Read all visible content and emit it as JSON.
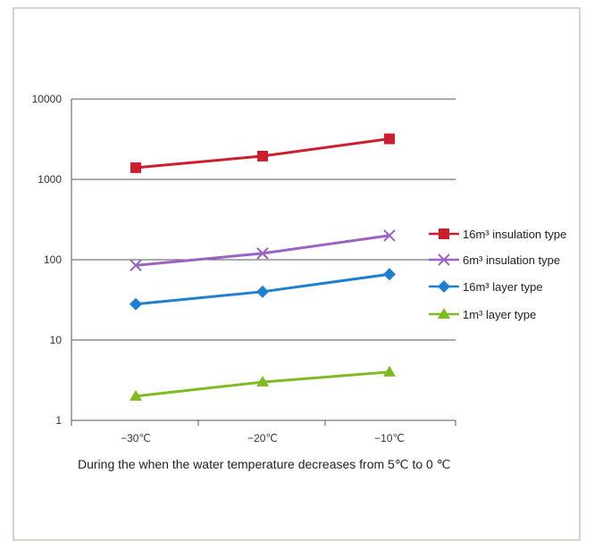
{
  "chart_data": {
    "type": "line",
    "y_scale": "log",
    "ylim": [
      1,
      10000
    ],
    "y_ticks": [
      "10000",
      "1000",
      "100",
      "10",
      "1"
    ],
    "categories": [
      "−30℃",
      "−20℃",
      "−10℃"
    ],
    "xlabel": "During the when the water temperature decreases from 5℃  to 0 ℃",
    "grid": true,
    "legend_position": "right",
    "series": [
      {
        "name": "16m³ insulation type",
        "values": [
          1400,
          1950,
          3200
        ],
        "color": "#cc1e2c",
        "marker": "square"
      },
      {
        "name": "6m³ insulation type",
        "values": [
          85,
          120,
          200
        ],
        "color": "#9b62c4",
        "marker": "x"
      },
      {
        "name": "16m³ layer type",
        "values": [
          28,
          40,
          66
        ],
        "color": "#1f7fd0",
        "marker": "diamond"
      },
      {
        "name": "1m³ layer type",
        "values": [
          2,
          3,
          4
        ],
        "color": "#7dbb1f",
        "marker": "triangle"
      }
    ]
  }
}
